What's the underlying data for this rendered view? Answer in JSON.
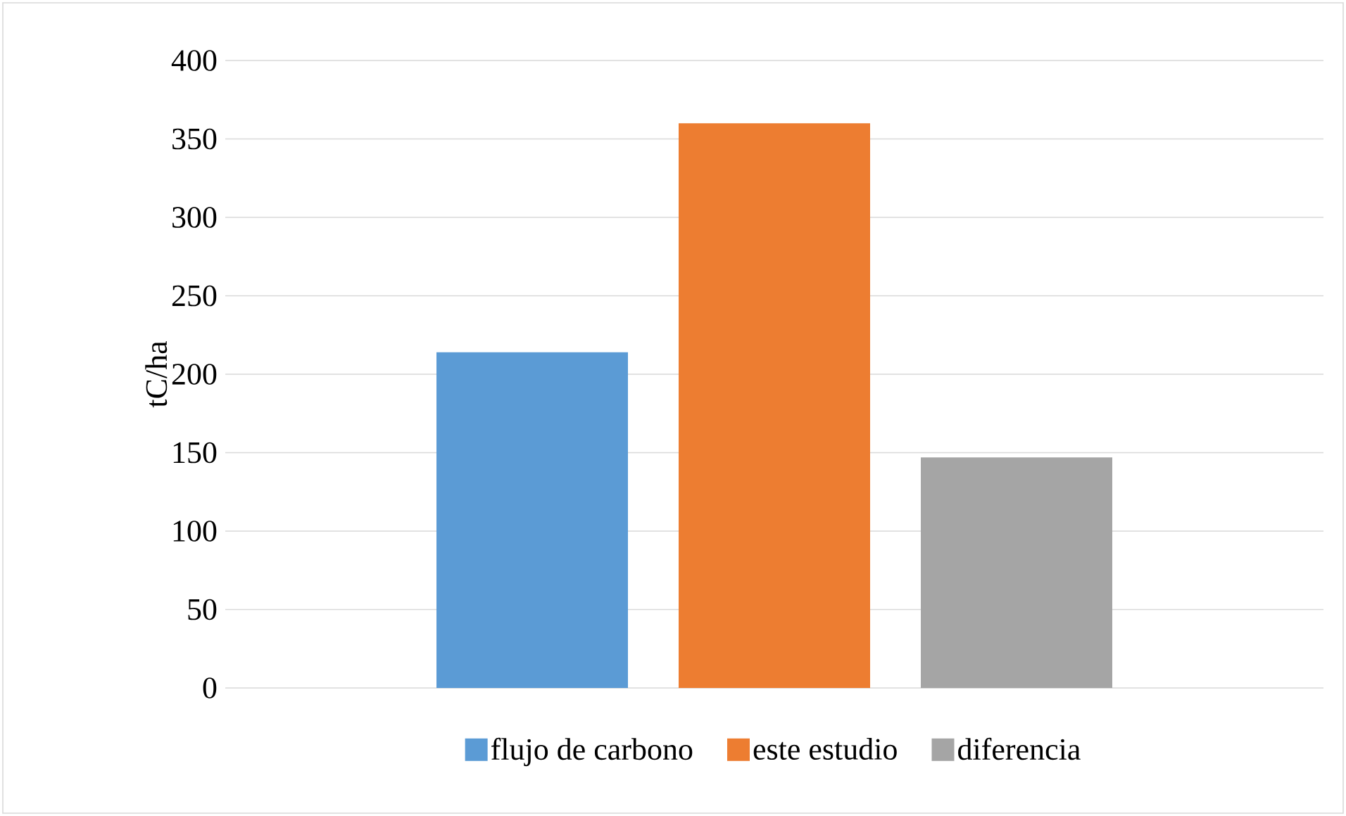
{
  "chart_data": {
    "type": "bar",
    "ylabel": "tC/ha",
    "categories": [
      null
    ],
    "series": [
      {
        "name": "flujo de carbono",
        "color": "#5b9bd5",
        "values": [
          214
        ]
      },
      {
        "name": "este estudio",
        "color": "#ed7d31",
        "values": [
          360
        ]
      },
      {
        "name": "diferencia",
        "color": "#a5a5a5",
        "values": [
          147
        ]
      }
    ],
    "ylim": [
      0,
      400
    ],
    "yticks": [
      0,
      50,
      100,
      150,
      200,
      250,
      300,
      350,
      400
    ],
    "grid": "y",
    "legend": "bottom"
  }
}
